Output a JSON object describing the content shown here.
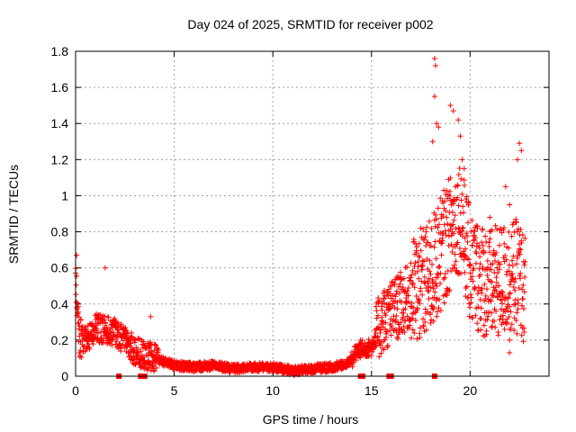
{
  "chart_data": {
    "type": "scatter",
    "title": "Day 024 of 2025, SRMTID for receiver p002",
    "xlabel": "GPS time / hours",
    "ylabel": "SRMTID / TECUs",
    "xlim": [
      0,
      24
    ],
    "ylim": [
      0,
      1.8
    ],
    "grid": true,
    "marker": "+",
    "colors": {
      "series": "#ff0000",
      "grid": "#a0a0a0",
      "axis": "#000000"
    },
    "x_ticks": [
      0,
      5,
      10,
      15,
      20
    ],
    "x_tick_labels": [
      "0",
      "5",
      "10",
      "15",
      "20"
    ],
    "y_ticks": [
      0,
      0.2,
      0.4,
      0.6,
      0.8,
      1.0,
      1.2,
      1.4,
      1.6,
      1.8
    ],
    "y_tick_labels": [
      "0",
      "0.2",
      "0.4",
      "0.6",
      "0.8",
      "1",
      "1.2",
      "1.4",
      "1.6",
      "1.8"
    ],
    "trend_hours": [
      0,
      0.2,
      0.5,
      1.0,
      1.5,
      2.0,
      2.5,
      3.0,
      3.5,
      4.0,
      5.0,
      6.0,
      7.0,
      8.0,
      9.0,
      10.0,
      11.0,
      12.0,
      13.0,
      13.8,
      14.4,
      15.0,
      15.5,
      16.0,
      17.0,
      18.0,
      19.0,
      19.5,
      20.0,
      21.0,
      22.0,
      22.5,
      22.8
    ],
    "trend_values": [
      0.55,
      0.22,
      0.2,
      0.27,
      0.26,
      0.24,
      0.2,
      0.14,
      0.12,
      0.1,
      0.06,
      0.05,
      0.06,
      0.04,
      0.05,
      0.05,
      0.03,
      0.04,
      0.05,
      0.07,
      0.15,
      0.16,
      0.3,
      0.35,
      0.45,
      0.55,
      0.8,
      0.9,
      0.6,
      0.5,
      0.55,
      0.55,
      0.45
    ],
    "highlights": [
      {
        "x": 18.2,
        "y": 1.76
      },
      {
        "x": 18.25,
        "y": 1.72
      },
      {
        "x": 18.2,
        "y": 1.55
      },
      {
        "x": 19.0,
        "y": 1.5
      },
      {
        "x": 19.15,
        "y": 1.47
      },
      {
        "x": 19.4,
        "y": 1.42
      },
      {
        "x": 18.3,
        "y": 1.4
      },
      {
        "x": 18.4,
        "y": 1.38
      },
      {
        "x": 19.5,
        "y": 1.33
      },
      {
        "x": 22.5,
        "y": 1.29
      },
      {
        "x": 22.6,
        "y": 1.25
      },
      {
        "x": 18.1,
        "y": 1.3
      },
      {
        "x": 22.4,
        "y": 1.2
      },
      {
        "x": 19.6,
        "y": 1.2
      },
      {
        "x": 19.7,
        "y": 1.15
      },
      {
        "x": 21.0,
        "y": 0.88
      },
      {
        "x": 21.8,
        "y": 1.05
      },
      {
        "x": 22.0,
        "y": 0.95
      },
      {
        "x": 1.5,
        "y": 0.6
      },
      {
        "x": 0.05,
        "y": 0.67
      },
      {
        "x": 3.8,
        "y": 0.33
      },
      {
        "x": 22.0,
        "y": 0.13
      },
      {
        "x": 22.0,
        "y": 0.2
      }
    ],
    "zero_points": [
      2.2,
      3.3,
      3.5,
      14.45,
      14.55,
      15.9,
      16.0,
      18.2
    ]
  }
}
